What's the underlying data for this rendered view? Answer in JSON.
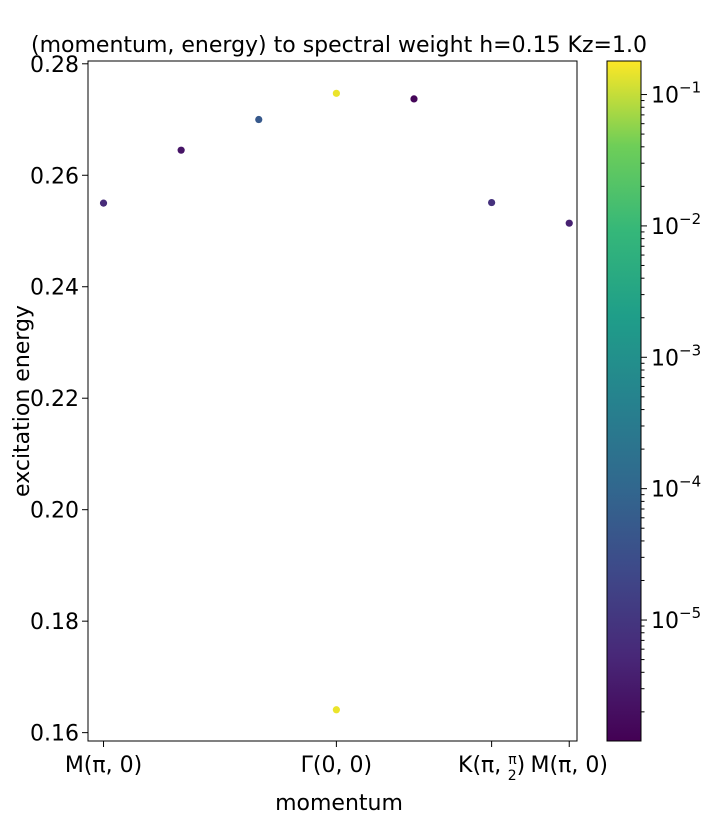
{
  "chart_data": {
    "type": "scatter",
    "title": "(momentum, energy) to spectral weight h=0.15 Kz=1.0",
    "xlabel": "momentum",
    "ylabel": "excitation energy",
    "ylim": [
      0.1585,
      0.2805
    ],
    "yticks": [
      "0.16",
      "0.18",
      "0.20",
      "0.22",
      "0.24",
      "0.26",
      "0.28"
    ],
    "ytick_values": [
      0.16,
      0.18,
      0.2,
      0.22,
      0.24,
      0.26,
      0.28
    ],
    "xlim": [
      -0.2,
      6.1
    ],
    "xticks": [
      {
        "value": 0,
        "main": "M(π, 0)",
        "frac": false
      },
      {
        "value": 3,
        "main": "Γ(0, 0)",
        "frac": false
      },
      {
        "value": 5,
        "main": "K(π, ",
        "num": "π",
        "den": "2",
        "end": ")",
        "frac": true
      },
      {
        "value": 6,
        "main": "M(π, 0)",
        "frac": false
      }
    ],
    "colorbar": {
      "scale": "log",
      "colormap": "viridis",
      "range": [
        1.2e-06,
        0.18
      ],
      "ticks": [
        {
          "base": "10",
          "exp": "−1",
          "value": 0.1
        },
        {
          "base": "10",
          "exp": "−2",
          "value": 0.01
        },
        {
          "base": "10",
          "exp": "−3",
          "value": 0.001
        },
        {
          "base": "10",
          "exp": "−4",
          "value": 0.0001
        },
        {
          "base": "10",
          "exp": "−5",
          "value": 1e-05
        }
      ]
    },
    "points": [
      {
        "x": 0,
        "y": 0.255,
        "w": 6e-06
      },
      {
        "x": 1,
        "y": 0.2645,
        "w": 2.5e-06
      },
      {
        "x": 2,
        "y": 0.27,
        "w": 5e-05
      },
      {
        "x": 3,
        "y": 0.2747,
        "w": 0.15
      },
      {
        "x": 3,
        "y": 0.1641,
        "w": 0.15
      },
      {
        "x": 4,
        "y": 0.2737,
        "w": 1.5e-06
      },
      {
        "x": 5,
        "y": 0.2551,
        "w": 8e-06
      },
      {
        "x": 6,
        "y": 0.2514,
        "w": 4e-06
      }
    ],
    "grid": false,
    "legend": "none"
  }
}
